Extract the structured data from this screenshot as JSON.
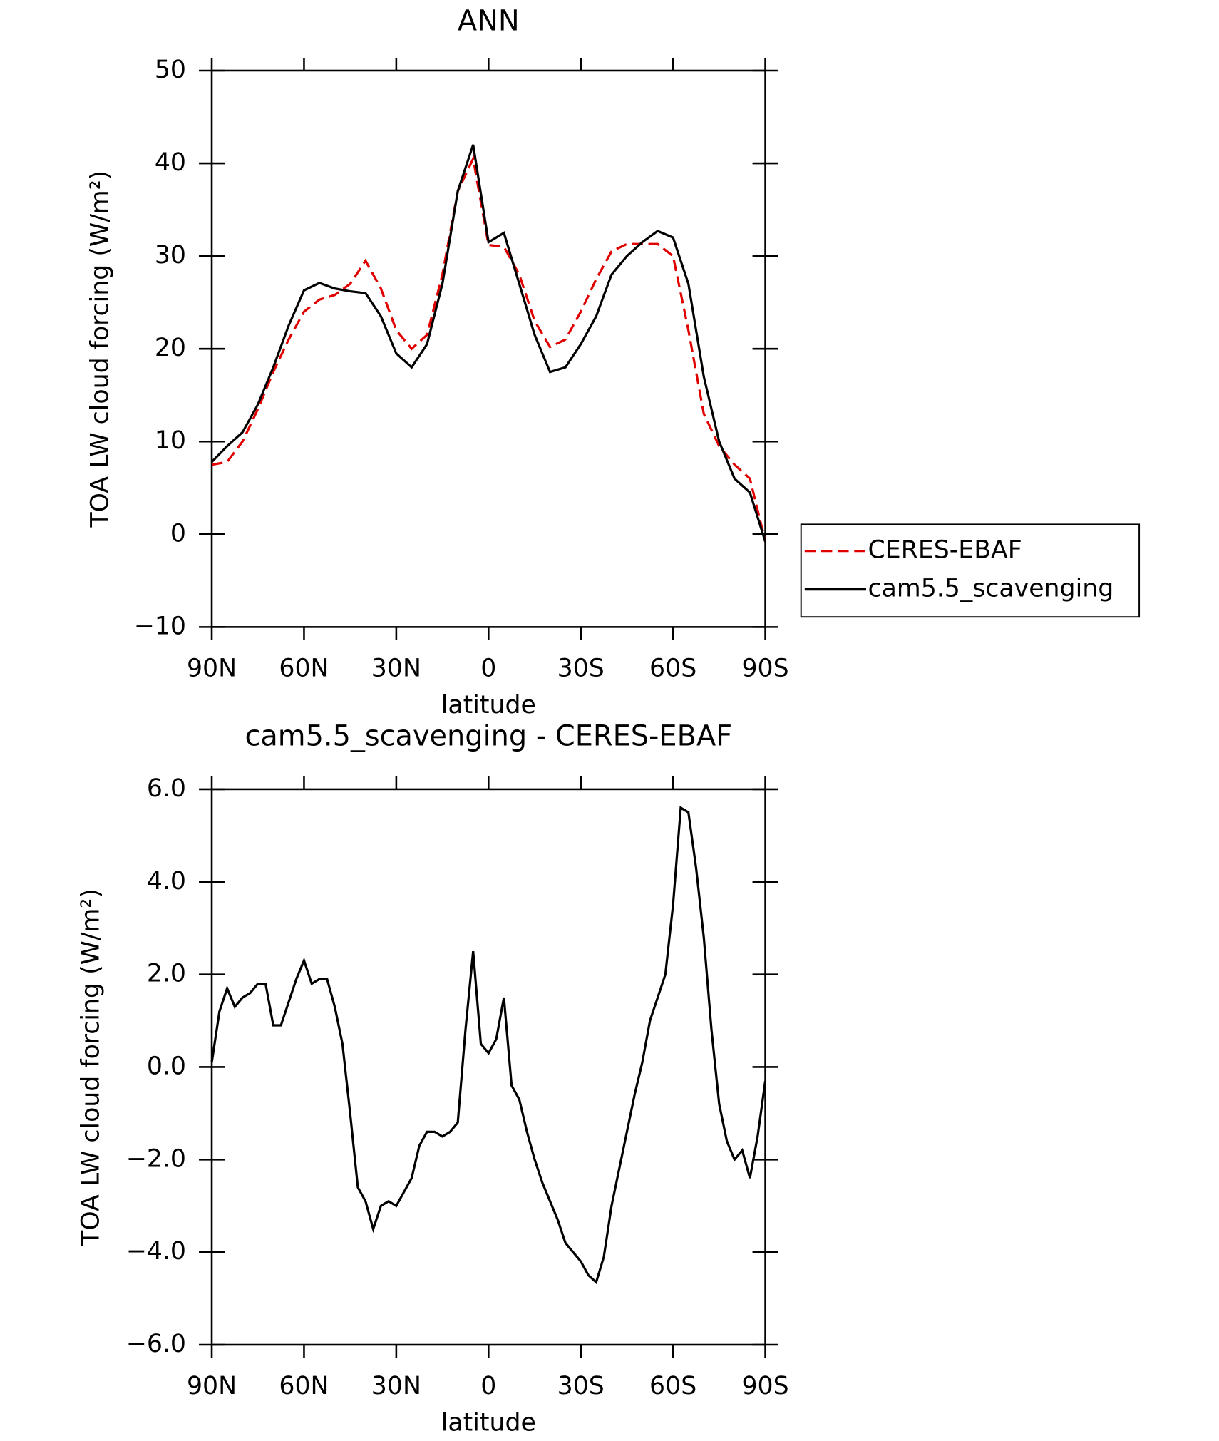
{
  "chart_data": [
    {
      "type": "line",
      "title": "ANN",
      "xlabel": "latitude",
      "ylabel": "TOA LW cloud forcing (W/m²)",
      "x": [
        90,
        85,
        80,
        75,
        70,
        65,
        60,
        55,
        50,
        45,
        40,
        35,
        30,
        25,
        20,
        15,
        10,
        5,
        0,
        -5,
        -10,
        -15,
        -20,
        -25,
        -30,
        -35,
        -40,
        -45,
        -50,
        -55,
        -60,
        -65,
        -70,
        -75,
        -80,
        -85,
        -90
      ],
      "series": [
        {
          "name": "CERES-EBAF",
          "color": "#e00000",
          "dash": true,
          "values": [
            7.5,
            7.8,
            10,
            13.5,
            17.5,
            21,
            24,
            25.3,
            25.8,
            27,
            29.5,
            26.5,
            22,
            20,
            21.5,
            28,
            37,
            40.5,
            31.2,
            31,
            28,
            23,
            20.2,
            21,
            24,
            27.5,
            30.5,
            31.3,
            31.3,
            31.3,
            30,
            22,
            13,
            9.5,
            7.5,
            6,
            -0.8
          ]
        },
        {
          "name": "cam5.5_scavenging",
          "color": "#000000",
          "dash": false,
          "values": [
            7.8,
            9.5,
            11,
            14,
            18,
            22.5,
            26.3,
            27.1,
            26.5,
            26.2,
            26,
            23.5,
            19.5,
            18,
            20.5,
            27,
            37,
            42,
            31.5,
            32.5,
            27,
            21.5,
            17.5,
            18,
            20.5,
            23.5,
            28,
            30,
            31.5,
            32.7,
            32,
            27,
            17,
            10,
            6,
            4.5,
            -0.8
          ]
        }
      ],
      "xlim": [
        90,
        -90
      ],
      "xticks": [
        {
          "value": 90,
          "label": "90N"
        },
        {
          "value": 60,
          "label": "60N"
        },
        {
          "value": 30,
          "label": "30N"
        },
        0,
        {
          "value": -30,
          "label": "30S"
        },
        {
          "value": -60,
          "label": "60S"
        },
        {
          "value": -90,
          "label": "90S"
        }
      ],
      "ylim": [
        -10,
        50
      ],
      "yticks": [
        {
          "value": -10,
          "label": "−10"
        },
        0,
        10,
        20,
        30,
        40,
        50
      ],
      "legend": "right"
    },
    {
      "type": "line",
      "title": "cam5.5_scavenging - CERES-EBAF",
      "xlabel": "latitude",
      "ylabel": "TOA LW cloud forcing (W/m²)",
      "x": [
        90,
        87.5,
        85,
        82.5,
        80,
        77.5,
        75,
        72.5,
        70,
        67.5,
        65,
        62.5,
        60,
        57.5,
        55,
        52.5,
        50,
        47.5,
        45,
        42.5,
        40,
        37.5,
        35,
        32.5,
        30,
        27.5,
        25,
        22.5,
        20,
        17.5,
        15,
        12.5,
        10,
        7.5,
        5,
        2.5,
        0,
        -2.5,
        -5,
        -7.5,
        -10,
        -12.5,
        -15,
        -17.5,
        -20,
        -22.5,
        -25,
        -27.5,
        -30,
        -32.5,
        -35,
        -37.5,
        -40,
        -42.5,
        -45,
        -47.5,
        -50,
        -52.5,
        -55,
        -57.5,
        -60,
        -62.5,
        -65,
        -67.5,
        -70,
        -72.5,
        -75,
        -77.5,
        -80,
        -82.5,
        -85,
        -87.5,
        -90
      ],
      "color": "#000000",
      "values": [
        0.1,
        1.2,
        1.7,
        1.3,
        1.5,
        1.6,
        1.8,
        1.8,
        0.9,
        0.9,
        1.4,
        1.9,
        2.3,
        1.8,
        1.9,
        1.9,
        1.3,
        0.5,
        -1.0,
        -2.6,
        -2.9,
        -3.5,
        -3.0,
        -2.9,
        -3.0,
        -2.7,
        -2.4,
        -1.7,
        -1.4,
        -1.4,
        -1.5,
        -1.4,
        -1.2,
        0.8,
        2.5,
        0.5,
        0.3,
        0.6,
        1.5,
        -0.4,
        -0.7,
        -1.4,
        -2.0,
        -2.5,
        -2.9,
        -3.3,
        -3.8,
        -4.0,
        -4.2,
        -4.5,
        -4.65,
        -4.1,
        -3.0,
        -2.2,
        -1.4,
        -0.6,
        0.1,
        1.0,
        1.5,
        2.0,
        3.5,
        5.6,
        5.5,
        4.3,
        2.8,
        0.8,
        -0.8,
        -1.6,
        -2.0,
        -1.8,
        -2.4,
        -1.5,
        -0.3
      ],
      "xlim": [
        90,
        -90
      ],
      "xticks": [
        {
          "value": 90,
          "label": "90N"
        },
        {
          "value": 60,
          "label": "60N"
        },
        {
          "value": 30,
          "label": "30N"
        },
        0,
        {
          "value": -30,
          "label": "30S"
        },
        {
          "value": -60,
          "label": "60S"
        },
        {
          "value": -90,
          "label": "90S"
        }
      ],
      "ylim": [
        -6,
        6
      ],
      "yticks": [
        {
          "value": -6,
          "label": "−6.0"
        },
        {
          "value": -4,
          "label": "−4.0"
        },
        {
          "value": -2,
          "label": "−2.0"
        },
        {
          "value": 0,
          "label": "0.0"
        },
        {
          "value": 2,
          "label": "2.0"
        },
        {
          "value": 4,
          "label": "4.0"
        },
        {
          "value": 6,
          "label": "6.0"
        }
      ]
    }
  ]
}
